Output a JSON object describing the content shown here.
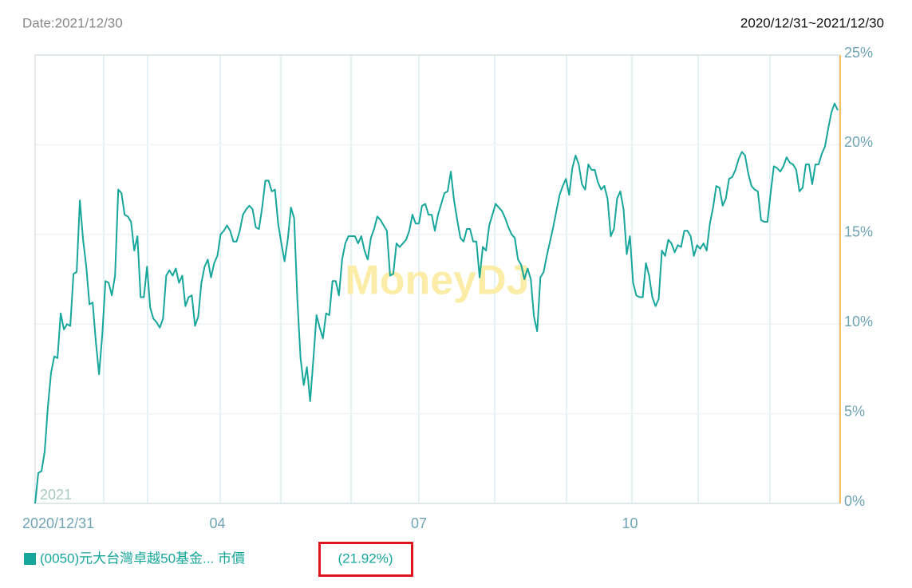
{
  "chart_data": {
    "type": "line",
    "date_label": "Date:2021/12/30",
    "range_label": "2020/12/31~2021/12/30",
    "watermark": "MoneyDJ",
    "year_label": "2021",
    "legend_label": "(21.92%)",
    "ylim": [
      0,
      25
    ],
    "yticks": [
      {
        "value": 0,
        "label": "0%"
      },
      {
        "value": 5,
        "label": "5%"
      },
      {
        "value": 10,
        "label": "10%"
      },
      {
        "value": 15,
        "label": "15%"
      },
      {
        "value": 20,
        "label": "20%"
      },
      {
        "value": 25,
        "label": "25%"
      }
    ],
    "grid": true,
    "categories": [
      "2020/12/31",
      null,
      null,
      null,
      null,
      null,
      null,
      null,
      null,
      null,
      null,
      null,
      null,
      null,
      null,
      null,
      null,
      null,
      null,
      null,
      null,
      null,
      null,
      null,
      null,
      null,
      null,
      null,
      null,
      null,
      null,
      null,
      null,
      null,
      null,
      null,
      null,
      null,
      null,
      null,
      null,
      null,
      null,
      null,
      null,
      null,
      null,
      null,
      null,
      null,
      null,
      null,
      null,
      null,
      null,
      null,
      null,
      "04",
      null,
      null,
      null,
      null,
      null,
      null,
      null,
      null,
      null,
      null,
      null,
      null,
      null,
      null,
      null,
      null,
      null,
      null,
      null,
      null,
      null,
      null,
      null,
      null,
      null,
      null,
      null,
      null,
      null,
      null,
      null,
      null,
      null,
      null,
      null,
      null,
      null,
      null,
      null,
      null,
      null,
      null,
      null,
      null,
      null,
      null,
      null,
      null,
      null,
      null,
      null,
      null,
      null,
      null,
      null,
      null,
      null,
      null,
      null,
      null,
      null,
      null,
      "07",
      null,
      null,
      null,
      null,
      null,
      null,
      null,
      null,
      null,
      null,
      null,
      null,
      null,
      null,
      null,
      null,
      null,
      null,
      null,
      null,
      null,
      null,
      null,
      null,
      null,
      null,
      null,
      null,
      null,
      null,
      null,
      null,
      null,
      null,
      null,
      null,
      null,
      null,
      null,
      null,
      null,
      null,
      null,
      null,
      null,
      null,
      null,
      null,
      null,
      null,
      null,
      null,
      null,
      null,
      null,
      null,
      null,
      null,
      null,
      null,
      null,
      null,
      null,
      null,
      null,
      "10",
      null,
      null,
      null,
      null,
      null,
      null,
      null,
      null,
      null,
      null,
      null,
      null,
      null,
      null,
      null,
      null,
      null,
      null,
      null,
      null,
      null,
      null,
      null,
      null,
      null,
      null,
      null,
      null,
      null,
      null,
      null,
      null,
      null,
      null,
      null,
      null,
      null,
      null,
      null,
      null,
      null,
      null,
      null,
      null,
      null,
      null,
      null,
      null,
      null,
      null,
      null,
      null,
      null,
      null,
      null,
      null,
      null,
      null,
      null,
      null,
      null,
      null,
      null,
      null,
      null
    ],
    "series": [
      {
        "name": "(0050)元大台灣卓越50基金... 市價",
        "color": "#17a69b",
        "values": [
          0,
          1.7,
          1.8,
          2.9,
          5.4,
          7.3,
          8.2,
          8.1,
          10.6,
          9.7,
          10.0,
          9.9,
          12.8,
          12.9,
          16.9,
          14.7,
          13.2,
          11.1,
          11.2,
          9.0,
          7.2,
          9.4,
          12.4,
          12.3,
          11.6,
          12.7,
          17.5,
          17.3,
          16.1,
          16.0,
          15.7,
          14.1,
          14.9,
          11.5,
          11.5,
          13.2,
          10.9,
          10.3,
          10.1,
          9.8,
          10.3,
          12.7,
          13.0,
          12.7,
          13.1,
          12.3,
          12.7,
          11.0,
          11.5,
          11.6,
          9.9,
          10.4,
          12.3,
          13.2,
          13.6,
          12.6,
          13.4,
          13.8,
          15.0,
          15.2,
          15.5,
          15.2,
          14.6,
          14.6,
          15.2,
          16.1,
          16.4,
          16.6,
          16.4,
          15.4,
          15.3,
          16.5,
          18.0,
          18.0,
          17.4,
          17.5,
          15.6,
          14.5,
          13.5,
          14.7,
          16.5,
          15.9,
          11.4,
          8.1,
          6.6,
          7.6,
          5.7,
          8.0,
          10.5,
          9.8,
          9.2,
          10.6,
          10.5,
          12.4,
          12.4,
          11.6,
          13.6,
          14.5,
          14.9,
          14.9,
          14.9,
          14.5,
          14.9,
          14.1,
          13.6,
          14.8,
          15.3,
          16.0,
          15.8,
          15.5,
          15.2,
          12.7,
          12.8,
          14.5,
          14.3,
          14.5,
          14.7,
          15.2,
          16.1,
          15.6,
          15.6,
          16.6,
          16.7,
          16.1,
          16.1,
          15.2,
          16.1,
          16.7,
          17.3,
          17.4,
          18.5,
          16.9,
          15.8,
          14.8,
          14.6,
          15.3,
          15.3,
          14.6,
          14.6,
          12.6,
          14.3,
          14.1,
          15.5,
          16.1,
          16.7,
          16.5,
          16.3,
          15.9,
          15.4,
          15.0,
          14.8,
          13.6,
          13.3,
          12.5,
          13.1,
          12.5,
          10.4,
          9.6,
          12.6,
          12.9,
          13.8,
          14.6,
          15.4,
          16.3,
          17.2,
          17.7,
          18.1,
          17.2,
          18.7,
          19.4,
          18.9,
          17.8,
          17.5,
          18.9,
          18.6,
          18.6,
          17.9,
          17.5,
          17.7,
          17.0,
          14.9,
          15.3,
          17.0,
          17.4,
          16.4,
          13.9,
          14.9,
          12.3,
          11.6,
          11.5,
          11.5,
          13.4,
          12.7,
          11.5,
          11.0,
          11.4,
          14.1,
          13.8,
          14.7,
          14.5,
          14.0,
          14.4,
          14.3,
          15.2,
          15.2,
          14.9,
          13.8,
          14.4,
          14.2,
          14.5,
          14.1,
          15.6,
          16.5,
          17.7,
          17.6,
          16.6,
          17.0,
          18.1,
          18.2,
          18.6,
          19.2,
          19.6,
          19.4,
          18.4,
          17.7,
          17.5,
          17.4,
          15.8,
          15.7,
          15.7,
          17.3,
          18.8,
          18.7,
          18.5,
          18.8,
          19.3,
          19.0,
          18.9,
          18.6,
          17.4,
          17.6,
          18.9,
          18.9,
          17.8,
          18.9,
          18.9,
          19.5,
          19.9,
          20.9,
          21.8,
          22.3,
          21.92
        ]
      }
    ]
  }
}
